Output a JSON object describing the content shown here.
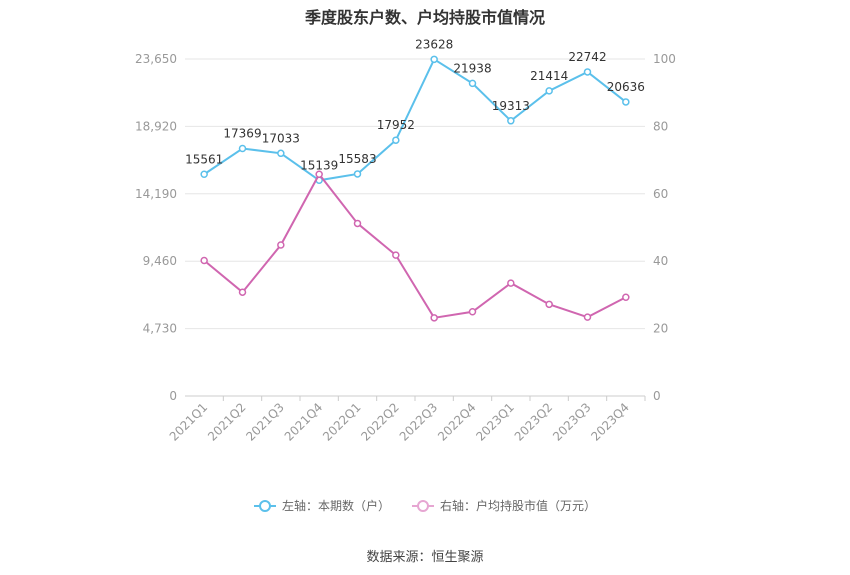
{
  "title": "季度股东户数、户均持股市值情况",
  "source": "数据来源：恒生聚源",
  "colors": {
    "left": "#5bc0eb",
    "right": "#d066b0",
    "grid": "#e6e6e6",
    "axis": "#cccccc"
  },
  "legend": {
    "left_label": "左轴：本期数（户）",
    "right_label": "右轴：户均持股市值（万元）"
  },
  "chart_data": {
    "type": "line",
    "title": "季度股东户数、户均持股市值情况",
    "categories": [
      "2021Q1",
      "2021Q2",
      "2021Q3",
      "2021Q4",
      "2022Q1",
      "2022Q2",
      "2022Q3",
      "2022Q4",
      "2023Q1",
      "2023Q2",
      "2023Q3",
      "2023Q4"
    ],
    "left_axis": {
      "min": 0,
      "max": 23650,
      "ticks": [
        "0",
        "4,730",
        "9,460",
        "14,190",
        "18,920",
        "23,650"
      ]
    },
    "right_axis": {
      "min": 0,
      "max": 100,
      "ticks": [
        "0",
        "20",
        "40",
        "60",
        "80",
        "100"
      ]
    },
    "grid": true,
    "legend_position": "bottom",
    "series": [
      {
        "name": "左轴：本期数（户）",
        "axis": "left",
        "values": [
          15561,
          17369,
          17033,
          15139,
          15583,
          17952,
          23628,
          21938,
          19313,
          21414,
          22742,
          20636
        ],
        "labels": [
          "15561",
          "17369",
          "17033",
          "15139",
          "15583",
          "17952",
          "23628",
          "21938",
          "19313",
          "21414",
          "22742",
          "20636"
        ]
      },
      {
        "name": "右轴：户均持股市值（万元）",
        "axis": "right",
        "values": [
          40.2,
          30.8,
          44.8,
          65.8,
          51.2,
          41.8,
          23.2,
          25.0,
          33.5,
          27.2,
          23.4,
          29.3
        ]
      }
    ]
  }
}
